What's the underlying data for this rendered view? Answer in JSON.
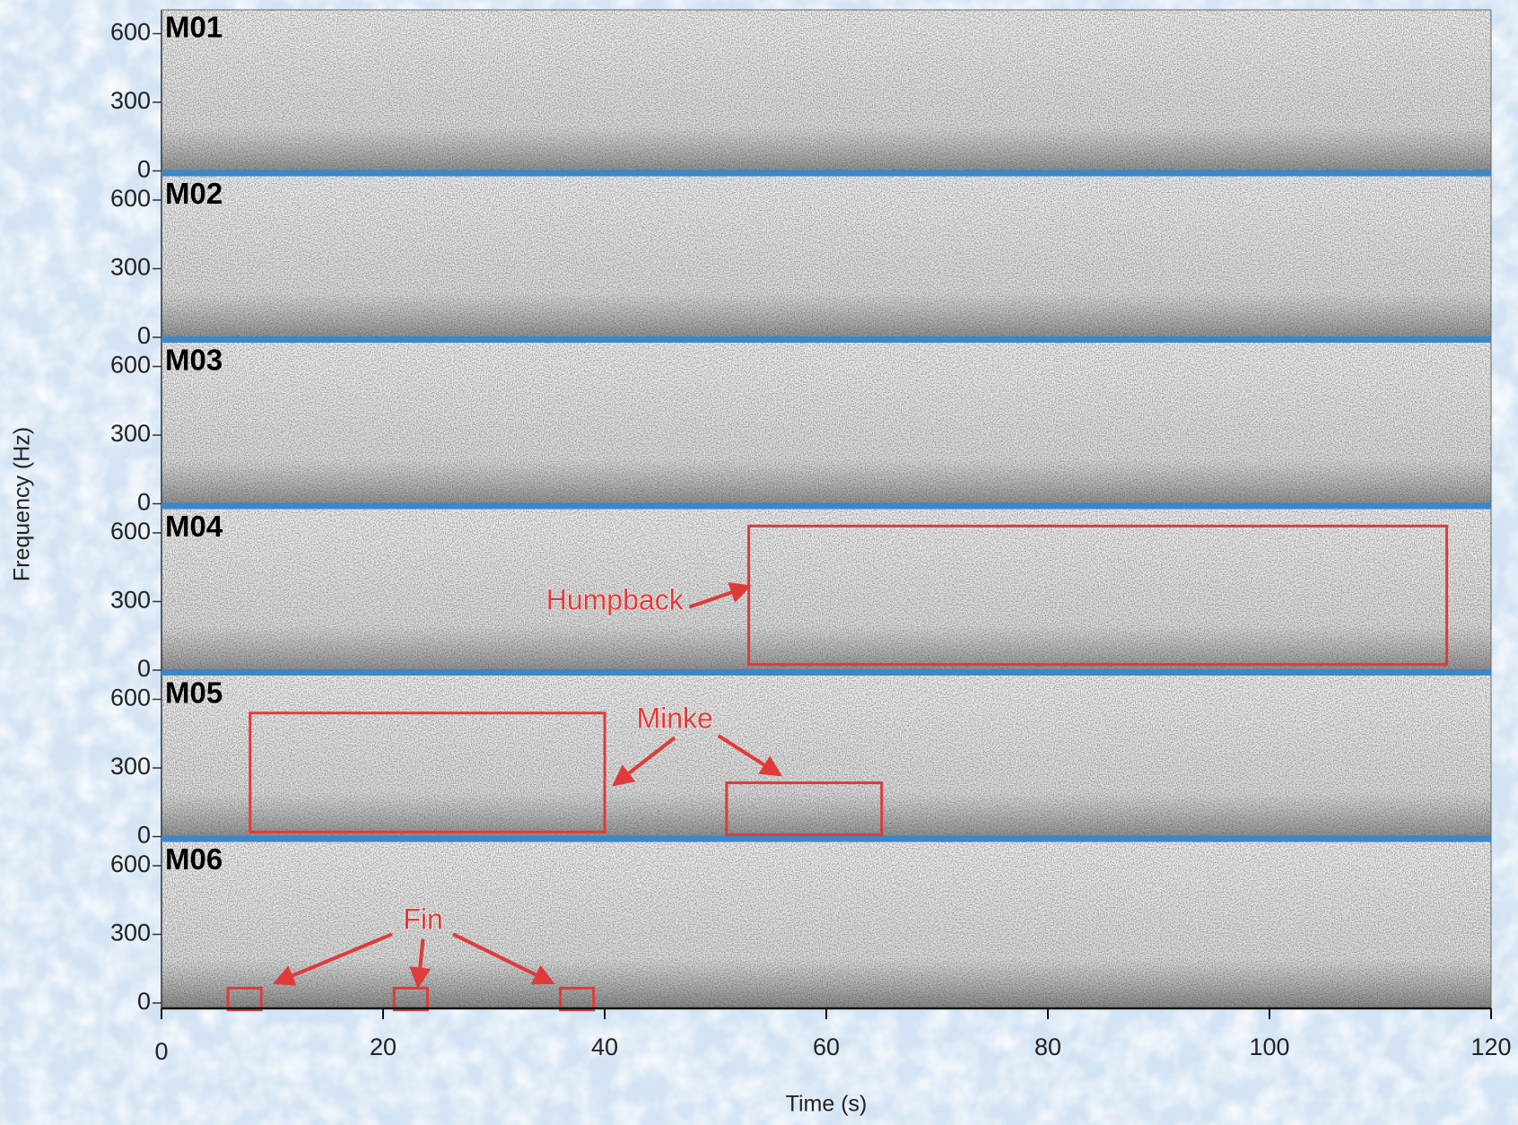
{
  "chart_data": {
    "type": "spectrogram",
    "x_label": "Time (s)",
    "y_label": "Frequency (Hz)",
    "xlim": [
      0,
      120
    ],
    "xticks": [
      0,
      20,
      40,
      60,
      80,
      100,
      120
    ],
    "ylim": [
      0,
      680
    ],
    "yticks": [
      0,
      300,
      600
    ],
    "panels": [
      {
        "label": "M01"
      },
      {
        "label": "M02"
      },
      {
        "label": "M03"
      },
      {
        "label": "M04",
        "annotations": [
          {
            "text": "Humpback",
            "color": "#e03a3a",
            "boxes": [
              {
                "x": [
                  53,
                  116
                ],
                "y": [
                  25,
                  630
                ]
              }
            ]
          }
        ]
      },
      {
        "label": "M05",
        "annotations": [
          {
            "text": "Minke",
            "color": "#e03a3a",
            "boxes": [
              {
                "x": [
                  8,
                  40
                ],
                "y": [
                  20,
                  540
                ]
              },
              {
                "x": [
                  51,
                  65
                ],
                "y": [
                  8,
                  235
                ]
              }
            ]
          }
        ]
      },
      {
        "label": "M06",
        "annotations": [
          {
            "text": "Fin",
            "color": "#e03a3a",
            "boxes": [
              {
                "x": [
                  6,
                  9
                ],
                "y": [
                  -30,
                  65
                ]
              },
              {
                "x": [
                  21,
                  24
                ],
                "y": [
                  -30,
                  65
                ]
              },
              {
                "x": [
                  36,
                  39
                ],
                "y": [
                  -30,
                  65
                ]
              }
            ]
          }
        ]
      }
    ]
  }
}
